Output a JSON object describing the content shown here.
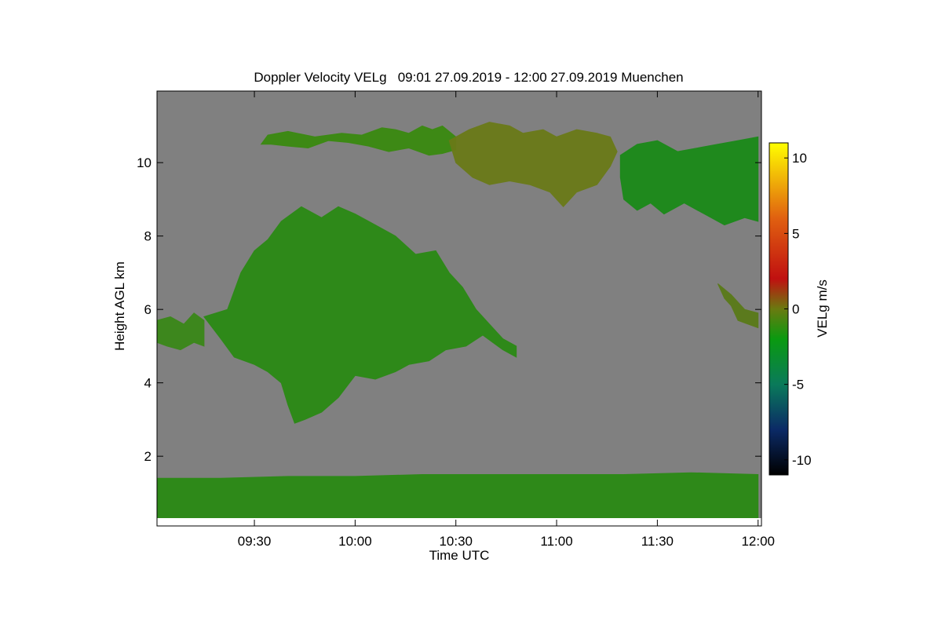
{
  "chart_data": {
    "type": "heatmap",
    "title": "Doppler Velocity VELg   09:01 27.09.2019 - 12:00 27.09.2019 Muenchen",
    "xlabel": "Time UTC",
    "ylabel": "Height AGL km",
    "x_unit": "minutes since 09:00 UTC",
    "xlim": [
      1,
      181
    ],
    "ylim": [
      0.1,
      11.95
    ],
    "x_ticks": [
      {
        "value": 30,
        "label": "09:30"
      },
      {
        "value": 60,
        "label": "10:00"
      },
      {
        "value": 90,
        "label": "10:30"
      },
      {
        "value": 120,
        "label": "11:00"
      },
      {
        "value": 150,
        "label": "11:30"
      },
      {
        "value": 180,
        "label": "12:00"
      }
    ],
    "y_ticks": [
      {
        "value": 2,
        "label": "2"
      },
      {
        "value": 4,
        "label": "4"
      },
      {
        "value": 6,
        "label": "6"
      },
      {
        "value": 8,
        "label": "8"
      },
      {
        "value": 10,
        "label": "10"
      }
    ],
    "colorbar": {
      "label": "VELg m/s",
      "range": [
        -11,
        11
      ],
      "ticks": [
        {
          "value": 10,
          "label": "10"
        },
        {
          "value": 5,
          "label": "5"
        },
        {
          "value": 0,
          "label": "0"
        },
        {
          "value": -5,
          "label": "-5"
        },
        {
          "value": -10,
          "label": "-10"
        }
      ],
      "stops": [
        {
          "value": -11,
          "color": "#000000"
        },
        {
          "value": -8,
          "color": "#0b2a66"
        },
        {
          "value": -5,
          "color": "#0a7a5a"
        },
        {
          "value": -2,
          "color": "#0a9a10"
        },
        {
          "value": 0,
          "color": "#6a7a10"
        },
        {
          "value": 2,
          "color": "#c01010"
        },
        {
          "value": 6,
          "color": "#e06010"
        },
        {
          "value": 11,
          "color": "#ffff00"
        }
      ]
    },
    "colors": {
      "no_signal": "#808080",
      "plot_frame": "#000000"
    },
    "regions": [
      {
        "name": "cirrus-left",
        "velocity": -1.0,
        "color": "#3a8a10",
        "x": [
          32,
          34,
          40,
          48,
          56,
          62,
          68,
          72,
          76,
          80,
          83,
          86,
          88,
          90,
          90,
          86,
          82,
          76,
          70,
          64,
          58,
          52,
          46,
          40,
          35,
          32
        ],
        "y": [
          10.5,
          10.75,
          10.85,
          10.7,
          10.8,
          10.75,
          10.95,
          10.9,
          10.8,
          11.0,
          10.9,
          11.0,
          10.85,
          10.7,
          10.35,
          10.25,
          10.2,
          10.4,
          10.3,
          10.45,
          10.55,
          10.6,
          10.4,
          10.45,
          10.5,
          10.5
        ]
      },
      {
        "name": "cirrus-middle",
        "velocity": 0.5,
        "color": "#6a7a18",
        "x": [
          88,
          94,
          100,
          106,
          110,
          116,
          120,
          126,
          132,
          136,
          138,
          136,
          132,
          126,
          122,
          118,
          112,
          106,
          100,
          95,
          90,
          88
        ],
        "y": [
          10.6,
          10.9,
          11.1,
          11.0,
          10.8,
          10.9,
          10.7,
          10.9,
          10.8,
          10.7,
          10.3,
          9.9,
          9.4,
          9.2,
          8.8,
          9.2,
          9.4,
          9.5,
          9.4,
          9.6,
          10.0,
          10.6
        ]
      },
      {
        "name": "cirrus-right",
        "velocity": -1.5,
        "color": "#1a8a18",
        "x": [
          139,
          144,
          150,
          156,
          162,
          168,
          174,
          180,
          180,
          176,
          170,
          164,
          158,
          152,
          148,
          144,
          140,
          139
        ],
        "y": [
          10.2,
          10.5,
          10.6,
          10.3,
          10.4,
          10.5,
          10.6,
          10.7,
          8.4,
          8.5,
          8.3,
          8.6,
          8.9,
          8.6,
          8.9,
          8.7,
          9.0,
          9.6
        ]
      },
      {
        "name": "altostratus-main",
        "velocity": -1.5,
        "color": "#2a8a14",
        "x": [
          15,
          22,
          26,
          30,
          34,
          38,
          44,
          50,
          55,
          60,
          66,
          72,
          78,
          84,
          88,
          92,
          96,
          100,
          104,
          108,
          108,
          104,
          98,
          93,
          87,
          82,
          76,
          72,
          66,
          60,
          55,
          50,
          45,
          42,
          40,
          38,
          34,
          30,
          24,
          20,
          15
        ],
        "y": [
          5.8,
          6.0,
          7.0,
          7.6,
          7.9,
          8.4,
          8.8,
          8.5,
          8.8,
          8.6,
          8.3,
          8.0,
          7.5,
          7.6,
          7.0,
          6.6,
          6.0,
          5.6,
          5.2,
          5.0,
          4.7,
          4.9,
          5.3,
          5.0,
          4.9,
          4.6,
          4.5,
          4.3,
          4.1,
          4.2,
          3.6,
          3.2,
          3.0,
          2.9,
          3.4,
          4.0,
          4.3,
          4.5,
          4.7,
          5.2,
          5.8
        ]
      },
      {
        "name": "altostratus-left-edge",
        "velocity": -1.0,
        "color": "#3a8818",
        "x": [
          1,
          5,
          9,
          12,
          15,
          15,
          12,
          8,
          4,
          1
        ],
        "y": [
          5.7,
          5.8,
          5.6,
          5.9,
          5.7,
          5.0,
          5.1,
          4.9,
          5.0,
          5.1
        ]
      },
      {
        "name": "patch-right",
        "velocity": 0.3,
        "color": "#5a7a18",
        "x": [
          168,
          172,
          176,
          180,
          180,
          177,
          174,
          172,
          170,
          168
        ],
        "y": [
          6.7,
          6.4,
          6.0,
          5.9,
          5.5,
          5.6,
          5.7,
          6.1,
          6.3,
          6.7
        ]
      },
      {
        "name": "boundary-layer",
        "velocity": 0.0,
        "color": "#2a8a14",
        "x": [
          1,
          20,
          40,
          60,
          80,
          100,
          120,
          140,
          160,
          180,
          180,
          1
        ],
        "y": [
          1.4,
          1.4,
          1.45,
          1.45,
          1.5,
          1.5,
          1.5,
          1.5,
          1.55,
          1.5,
          0.25,
          0.25
        ]
      }
    ]
  }
}
